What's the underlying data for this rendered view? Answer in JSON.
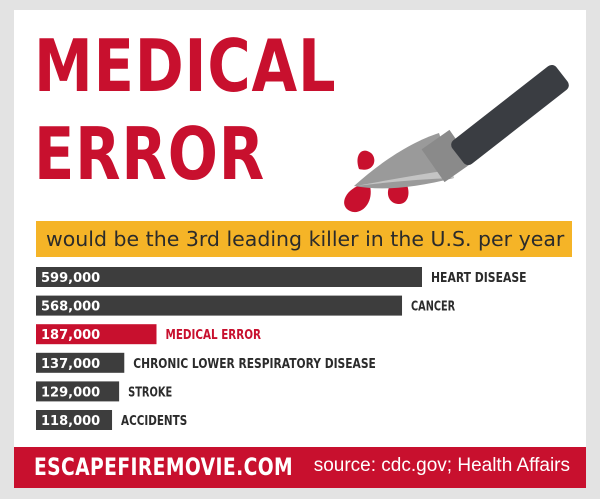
{
  "headline": {
    "line1": "MEDICAL",
    "line2": "ERROR"
  },
  "subtitle": "would be the 3rd leading killer in the U.S. per year",
  "footer": {
    "site": "ESCAPEFIREMOVIE.COM",
    "source": "source: cdc.gov; Health Affairs"
  },
  "icon": "scalpel-icon",
  "colors": {
    "accent": "#c8102e",
    "bar": "#3d3d3d",
    "banner": "#f5b427",
    "background": "#e3e3e3"
  },
  "chart_data": {
    "type": "bar",
    "orientation": "horizontal",
    "categories": [
      "HEART DISEASE",
      "CANCER",
      "MEDICAL ERROR",
      "CHRONIC LOWER RESPIRATORY DISEASE",
      "STROKE",
      "ACCIDENTS"
    ],
    "values": [
      599000,
      568000,
      187000,
      137000,
      129000,
      118000
    ],
    "value_labels": [
      "599,000",
      "568,000",
      "187,000",
      "137,000",
      "129,000",
      "118,000"
    ],
    "highlight": "MEDICAL ERROR"
  }
}
